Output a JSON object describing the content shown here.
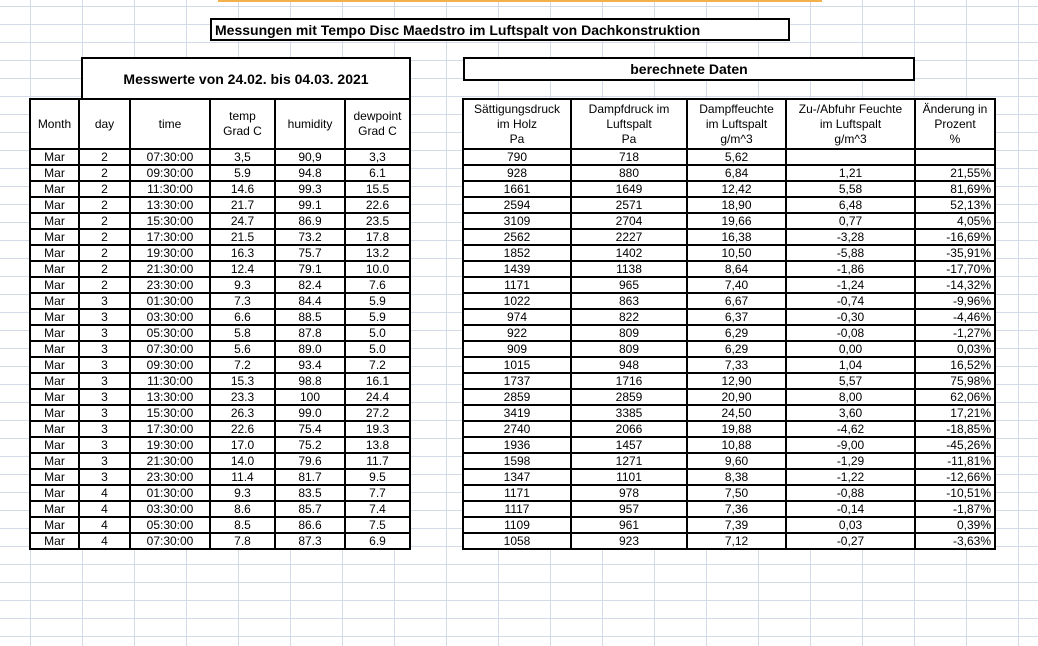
{
  "title": "Messungen mit Tempo Disc Maedstro im Luftspalt von Dachkonstruktion",
  "left_caption": "Messwerte von 24.02. bis 04.03. 2021",
  "right_caption": "berechnete Daten",
  "colors": {
    "accent_bar": "#f4b04a",
    "gridline": "#d4dbe8"
  },
  "left_table": {
    "headers": [
      "Month",
      "day",
      "time",
      "temp\nGrad C",
      "humidity",
      "dewpoint\nGrad C"
    ],
    "rows": [
      [
        "Mar",
        "2",
        "07:30:00",
        "3,5",
        "90,9",
        "3,3"
      ],
      [
        "Mar",
        "2",
        "09:30:00",
        "5.9",
        "94.8",
        "6.1"
      ],
      [
        "Mar",
        "2",
        "11:30:00",
        "14.6",
        "99.3",
        "15.5"
      ],
      [
        "Mar",
        "2",
        "13:30:00",
        "21.7",
        "99.1",
        "22.6"
      ],
      [
        "Mar",
        "2",
        "15:30:00",
        "24.7",
        "86.9",
        "23.5"
      ],
      [
        "Mar",
        "2",
        "17:30:00",
        "21.5",
        "73.2",
        "17.8"
      ],
      [
        "Mar",
        "2",
        "19:30:00",
        "16.3",
        "75.7",
        "13.2"
      ],
      [
        "Mar",
        "2",
        "21:30:00",
        "12.4",
        "79.1",
        "10.0"
      ],
      [
        "Mar",
        "2",
        "23:30:00",
        "9.3",
        "82.4",
        "7.6"
      ],
      [
        "Mar",
        "3",
        "01:30:00",
        "7.3",
        "84.4",
        "5.9"
      ],
      [
        "Mar",
        "3",
        "03:30:00",
        "6.6",
        "88.5",
        "5.9"
      ],
      [
        "Mar",
        "3",
        "05:30:00",
        "5.8",
        "87.8",
        "5.0"
      ],
      [
        "Mar",
        "3",
        "07:30:00",
        "5.6",
        "89.0",
        "5.0"
      ],
      [
        "Mar",
        "3",
        "09:30:00",
        "7.2",
        "93.4",
        "7.2"
      ],
      [
        "Mar",
        "3",
        "11:30:00",
        "15.3",
        "98.8",
        "16.1"
      ],
      [
        "Mar",
        "3",
        "13:30:00",
        "23.3",
        "100",
        "24.4"
      ],
      [
        "Mar",
        "3",
        "15:30:00",
        "26.3",
        "99.0",
        "27.2"
      ],
      [
        "Mar",
        "3",
        "17:30:00",
        "22.6",
        "75.4",
        "19.3"
      ],
      [
        "Mar",
        "3",
        "19:30:00",
        "17.0",
        "75.2",
        "13.8"
      ],
      [
        "Mar",
        "3",
        "21:30:00",
        "14.0",
        "79.6",
        "11.7"
      ],
      [
        "Mar",
        "3",
        "23:30:00",
        "11.4",
        "81.7",
        "9.5"
      ],
      [
        "Mar",
        "4",
        "01:30:00",
        "9.3",
        "83.5",
        "7.7"
      ],
      [
        "Mar",
        "4",
        "03:30:00",
        "8.6",
        "85.7",
        "7.4"
      ],
      [
        "Mar",
        "4",
        "05:30:00",
        "8.5",
        "86.6",
        "7.5"
      ],
      [
        "Mar",
        "4",
        "07:30:00",
        "7.8",
        "87.3",
        "6.9"
      ]
    ]
  },
  "right_table": {
    "headers": [
      "Sättigungsdruck\nim Holz\nPa",
      "Dampfdruck im\nLuftspalt\nPa",
      "Dampffeuchte\nim Luftspalt\ng/m^3",
      "Zu-/Abfuhr Feuchte\nim Luftspalt\ng/m^3",
      "Änderung in\nProzent\n%"
    ],
    "rows": [
      [
        "790",
        "718",
        "5,62",
        "",
        ""
      ],
      [
        "928",
        "880",
        "6,84",
        "1,21",
        "21,55%"
      ],
      [
        "1661",
        "1649",
        "12,42",
        "5,58",
        "81,69%"
      ],
      [
        "2594",
        "2571",
        "18,90",
        "6,48",
        "52,13%"
      ],
      [
        "3109",
        "2704",
        "19,66",
        "0,77",
        "4,05%"
      ],
      [
        "2562",
        "2227",
        "16,38",
        "-3,28",
        "-16,69%"
      ],
      [
        "1852",
        "1402",
        "10,50",
        "-5,88",
        "-35,91%"
      ],
      [
        "1439",
        "1138",
        "8,64",
        "-1,86",
        "-17,70%"
      ],
      [
        "1171",
        "965",
        "7,40",
        "-1,24",
        "-14,32%"
      ],
      [
        "1022",
        "863",
        "6,67",
        "-0,74",
        "-9,96%"
      ],
      [
        "974",
        "822",
        "6,37",
        "-0,30",
        "-4,46%"
      ],
      [
        "922",
        "809",
        "6,29",
        "-0,08",
        "-1,27%"
      ],
      [
        "909",
        "809",
        "6,29",
        "0,00",
        "0,03%"
      ],
      [
        "1015",
        "948",
        "7,33",
        "1,04",
        "16,52%"
      ],
      [
        "1737",
        "1716",
        "12,90",
        "5,57",
        "75,98%"
      ],
      [
        "2859",
        "2859",
        "20,90",
        "8,00",
        "62,06%"
      ],
      [
        "3419",
        "3385",
        "24,50",
        "3,60",
        "17,21%"
      ],
      [
        "2740",
        "2066",
        "19,88",
        "-4,62",
        "-18,85%"
      ],
      [
        "1936",
        "1457",
        "10,88",
        "-9,00",
        "-45,26%"
      ],
      [
        "1598",
        "1271",
        "9,60",
        "-1,29",
        "-11,81%"
      ],
      [
        "1347",
        "1101",
        "8,38",
        "-1,22",
        "-12,66%"
      ],
      [
        "1171",
        "978",
        "7,50",
        "-0,88",
        "-10,51%"
      ],
      [
        "1117",
        "957",
        "7,36",
        "-0,14",
        "-1,87%"
      ],
      [
        "1109",
        "961",
        "7,39",
        "0,03",
        "0,39%"
      ],
      [
        "1058",
        "923",
        "7,12",
        "-0,27",
        "-3,63%"
      ]
    ]
  }
}
